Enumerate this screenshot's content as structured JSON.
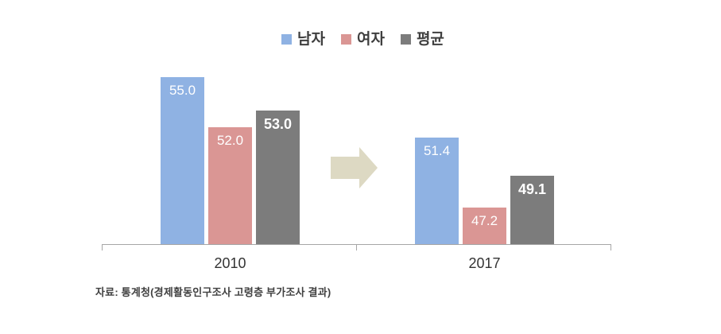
{
  "colors": {
    "male": "#8fb2e3",
    "female": "#da9694",
    "average": "#7c7c7c",
    "arrow": "#ddd9c3",
    "axis": "#a6a6a6",
    "label_text": "#3f3f3f",
    "value_text": "#ffffff"
  },
  "legend": {
    "items": [
      {
        "key": "male",
        "label": "남자",
        "color": "#8fb2e3"
      },
      {
        "key": "female",
        "label": "여자",
        "color": "#da9694"
      },
      {
        "key": "average",
        "label": "평균",
        "color": "#7c7c7c"
      }
    ]
  },
  "chart_data": {
    "type": "bar",
    "categories": [
      "2010",
      "2017"
    ],
    "series": [
      {
        "key": "male",
        "name": "남자",
        "color": "#8fb2e3",
        "values": [
          55.0,
          51.4
        ],
        "labels": [
          "55.0",
          "51.4"
        ],
        "bold_labels": false
      },
      {
        "key": "female",
        "name": "여자",
        "color": "#da9694",
        "values": [
          52.0,
          47.2
        ],
        "labels": [
          "52.0",
          "47.2"
        ],
        "bold_labels": false
      },
      {
        "key": "average",
        "name": "평균",
        "color": "#7c7c7c",
        "values": [
          53.0,
          49.1
        ],
        "labels": [
          "53.0",
          "49.1"
        ],
        "bold_labels": true
      }
    ],
    "title": "",
    "xlabel": "",
    "ylabel": "",
    "ylim": [
      45,
      57
    ],
    "grid": false,
    "legend_position": "top",
    "annotations": [
      {
        "type": "block-arrow-right",
        "between": [
          "2010",
          "2017"
        ],
        "color": "#ddd9c3"
      }
    ]
  },
  "source_note": "자료: 통계청(경제활동인구조사 고령층 부가조사 결과)"
}
